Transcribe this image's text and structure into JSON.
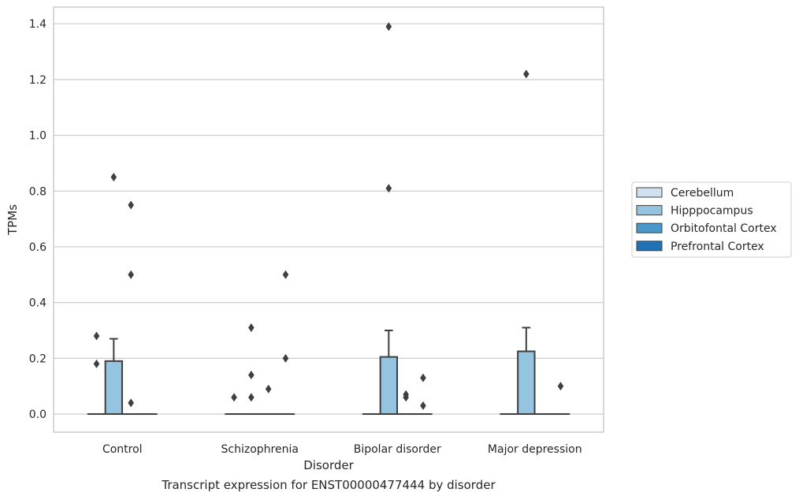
{
  "chart_data": {
    "type": "box",
    "xlabel": "Disorder",
    "ylabel": "TPMs",
    "caption": "Transcript expression for ENST00000477444 by disorder",
    "ylim": [
      -0.065,
      1.46
    ],
    "yticks": [
      0.0,
      0.2,
      0.4,
      0.6,
      0.8,
      1.0,
      1.2,
      1.4
    ],
    "ytick_labels": [
      "0.0",
      "0.2",
      "0.4",
      "0.6",
      "0.8",
      "1.0",
      "1.2",
      "1.4"
    ],
    "grid": "horizontal",
    "legend_position": "right",
    "categories": [
      "Control",
      "Schizophrenia",
      "Bipolar disorder",
      "Major depression"
    ],
    "series": [
      {
        "name": "Cerebellum",
        "color": "#d0e1f2",
        "boxes": [
          {
            "q1": 0,
            "median": 0,
            "q3": 0,
            "whisker_low": 0,
            "whisker_high": 0,
            "outliers": [
              0.18,
              0.28
            ]
          },
          {
            "q1": 0,
            "median": 0,
            "q3": 0,
            "whisker_low": 0,
            "whisker_high": 0,
            "outliers": [
              0.06
            ]
          },
          {
            "q1": 0,
            "median": 0,
            "q3": 0,
            "whisker_low": 0,
            "whisker_high": 0,
            "outliers": []
          },
          {
            "q1": 0,
            "median": 0,
            "q3": 0,
            "whisker_low": 0,
            "whisker_high": 0,
            "outliers": []
          }
        ]
      },
      {
        "name": "Hipppocampus",
        "color": "#94c4df",
        "boxes": [
          {
            "q1": 0,
            "median": 0,
            "q3": 0.19,
            "whisker_low": 0,
            "whisker_high": 0.27,
            "outliers": [
              0.85
            ]
          },
          {
            "q1": 0,
            "median": 0,
            "q3": 0,
            "whisker_low": 0,
            "whisker_high": 0,
            "outliers": [
              0.06,
              0.14,
              0.31
            ]
          },
          {
            "q1": 0,
            "median": 0,
            "q3": 0.205,
            "whisker_low": 0,
            "whisker_high": 0.3,
            "outliers": [
              0.81,
              1.39
            ]
          },
          {
            "q1": 0,
            "median": 0,
            "q3": 0.225,
            "whisker_low": 0,
            "whisker_high": 0.31,
            "outliers": [
              1.22
            ]
          }
        ]
      },
      {
        "name": "Orbitofontal Cortex",
        "color": "#4a98c9",
        "boxes": [
          {
            "q1": 0,
            "median": 0,
            "q3": 0,
            "whisker_low": 0,
            "whisker_high": 0,
            "outliers": [
              0.04,
              0.5,
              0.75
            ]
          },
          {
            "q1": 0,
            "median": 0,
            "q3": 0,
            "whisker_low": 0,
            "whisker_high": 0,
            "outliers": [
              0.09
            ]
          },
          {
            "q1": 0,
            "median": 0,
            "q3": 0,
            "whisker_low": 0,
            "whisker_high": 0,
            "outliers": [
              0.06,
              0.07
            ]
          },
          {
            "q1": 0,
            "median": 0,
            "q3": 0,
            "whisker_low": 0,
            "whisker_high": 0,
            "outliers": []
          }
        ]
      },
      {
        "name": "Prefrontal Cortex",
        "color": "#2171b5",
        "boxes": [
          {
            "q1": 0,
            "median": 0,
            "q3": 0,
            "whisker_low": 0,
            "whisker_high": 0,
            "outliers": []
          },
          {
            "q1": 0,
            "median": 0,
            "q3": 0,
            "whisker_low": 0,
            "whisker_high": 0,
            "outliers": [
              0.2,
              0.5
            ]
          },
          {
            "q1": 0,
            "median": 0,
            "q3": 0,
            "whisker_low": 0,
            "whisker_high": 0,
            "outliers": [
              0.03,
              0.13
            ]
          },
          {
            "q1": 0,
            "median": 0,
            "q3": 0,
            "whisker_low": 0,
            "whisker_high": 0,
            "outliers": [
              0.1
            ]
          }
        ]
      }
    ]
  }
}
